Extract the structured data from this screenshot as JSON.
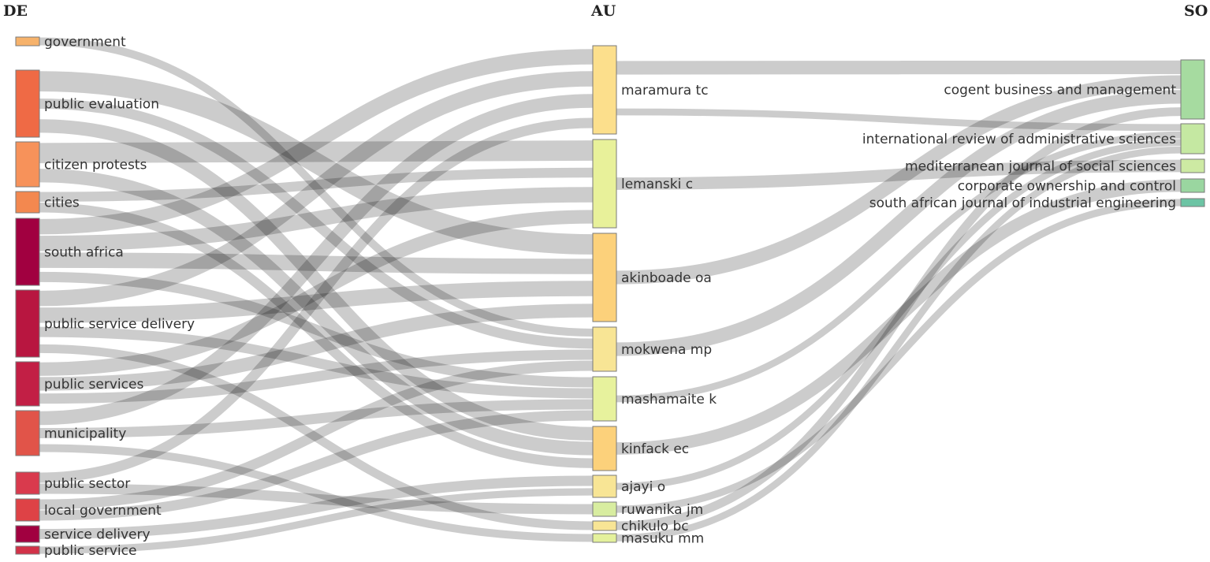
{
  "columns": {
    "left": "DE",
    "middle": "AU",
    "right": "SO"
  },
  "nodes": {
    "left": [
      {
        "id": "government",
        "label": "government",
        "color": "#f6b26b"
      },
      {
        "id": "public_evaluation",
        "label": "public evaluation",
        "color": "#ef6a45"
      },
      {
        "id": "citizen_protests",
        "label": "citizen protests",
        "color": "#f7925a"
      },
      {
        "id": "cities",
        "label": "cities",
        "color": "#f3884f"
      },
      {
        "id": "south_africa",
        "label": "south africa",
        "color": "#a10040"
      },
      {
        "id": "public_service_delivery",
        "label": "public service delivery",
        "color": "#b81640"
      },
      {
        "id": "public_services",
        "label": "public services",
        "color": "#c21f45"
      },
      {
        "id": "municipality",
        "label": "municipality",
        "color": "#e15449"
      },
      {
        "id": "public_sector",
        "label": "public sector",
        "color": "#d93a4d"
      },
      {
        "id": "local_government",
        "label": "local government",
        "color": "#de4246"
      },
      {
        "id": "service_delivery",
        "label": "service delivery",
        "color": "#a10040"
      },
      {
        "id": "public_service",
        "label": "public service",
        "color": "#d23248"
      }
    ],
    "middle": [
      {
        "id": "maramura",
        "label": "maramura tc",
        "color": "#fcdf8c"
      },
      {
        "id": "lemanski",
        "label": "lemanski c",
        "color": "#e8f19a"
      },
      {
        "id": "akinboade",
        "label": "akinboade oa",
        "color": "#fcd17b"
      },
      {
        "id": "mokwena",
        "label": "mokwena mp",
        "color": "#f8e595"
      },
      {
        "id": "mashamaite",
        "label": "mashamaite k",
        "color": "#e7f29d"
      },
      {
        "id": "kinfack",
        "label": "kinfack ec",
        "color": "#fcd17b"
      },
      {
        "id": "ajayi",
        "label": "ajayi o",
        "color": "#f8e595"
      },
      {
        "id": "ruwanika",
        "label": "ruwanika jm",
        "color": "#d8eda0"
      },
      {
        "id": "chikulo",
        "label": "chikulo bc",
        "color": "#f8e595"
      },
      {
        "id": "masuku",
        "label": "masuku mm",
        "color": "#e4f19c"
      }
    ],
    "right": [
      {
        "id": "cogent",
        "label": "cogent business and management",
        "color": "#a6dba0"
      },
      {
        "id": "irias",
        "label": "international review of administrative sciences",
        "color": "#c5e8a2"
      },
      {
        "id": "mjss",
        "label": "mediterranean journal of social sciences",
        "color": "#cdeaa3"
      },
      {
        "id": "coc",
        "label": "corporate ownership and control",
        "color": "#9ad6a0"
      },
      {
        "id": "sajie",
        "label": "south african journal of industrial engineering",
        "color": "#6cc4a4"
      }
    ]
  },
  "links_left": [
    {
      "source": "government",
      "target": "mokwena"
    },
    {
      "source": "public_evaluation",
      "target": "akinboade"
    },
    {
      "source": "public_evaluation",
      "target": "mokwena"
    },
    {
      "source": "public_evaluation",
      "target": "kinfack"
    },
    {
      "source": "citizen_protests",
      "target": "lemanski"
    },
    {
      "source": "citizen_protests",
      "target": "kinfack"
    },
    {
      "source": "cities",
      "target": "lemanski"
    },
    {
      "source": "cities",
      "target": "kinfack"
    },
    {
      "source": "south_africa",
      "target": "maramura"
    },
    {
      "source": "south_africa",
      "target": "lemanski"
    },
    {
      "source": "south_africa",
      "target": "akinboade"
    },
    {
      "source": "south_africa",
      "target": "mashamaite"
    },
    {
      "source": "public_service_delivery",
      "target": "maramura"
    },
    {
      "source": "public_service_delivery",
      "target": "akinboade"
    },
    {
      "source": "public_service_delivery",
      "target": "mashamaite"
    },
    {
      "source": "public_service_delivery",
      "target": "chikulo"
    },
    {
      "source": "public_services",
      "target": "lemanski"
    },
    {
      "source": "public_services",
      "target": "akinboade"
    },
    {
      "source": "public_services",
      "target": "mokwena"
    },
    {
      "source": "municipality",
      "target": "maramura"
    },
    {
      "source": "municipality",
      "target": "mashamaite"
    },
    {
      "source": "municipality",
      "target": "masuku"
    },
    {
      "source": "public_sector",
      "target": "maramura"
    },
    {
      "source": "public_sector",
      "target": "ruwanika"
    },
    {
      "source": "local_government",
      "target": "mokwena"
    },
    {
      "source": "local_government",
      "target": "mashamaite"
    },
    {
      "source": "service_delivery",
      "target": "ajayi"
    },
    {
      "source": "public_service",
      "target": "ajayi"
    }
  ],
  "links_right": [
    {
      "source": "maramura",
      "target": "cogent"
    },
    {
      "source": "maramura",
      "target": "irias"
    },
    {
      "source": "lemanski",
      "target": "mjss"
    },
    {
      "source": "akinboade",
      "target": "cogent"
    },
    {
      "source": "mokwena",
      "target": "cogent"
    },
    {
      "source": "mashamaite",
      "target": "irias"
    },
    {
      "source": "kinfack",
      "target": "coc"
    },
    {
      "source": "ajayi",
      "target": "irias"
    },
    {
      "source": "ruwanika",
      "target": "sajie"
    },
    {
      "source": "chikulo",
      "target": "cogent"
    },
    {
      "source": "masuku",
      "target": "irias"
    }
  ]
}
